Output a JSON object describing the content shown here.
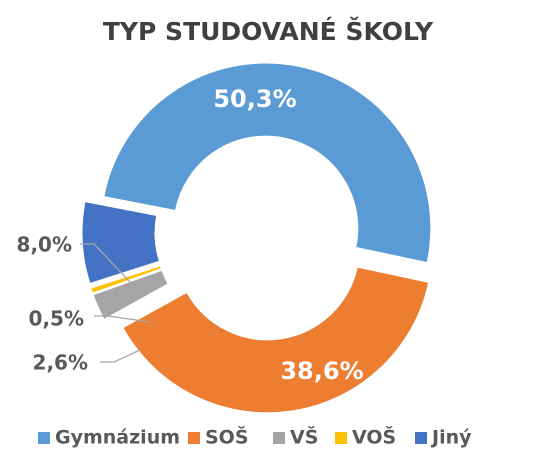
{
  "chart_data": {
    "type": "donut",
    "title": "TYP STUDOVANÉ ŠKOLY",
    "categories": [
      "Gymnázium",
      "SOŠ",
      "VŠ",
      "VOŠ",
      "Jiný"
    ],
    "values": [
      50.3,
      38.6,
      2.6,
      0.5,
      8.0
    ],
    "value_labels": [
      "50,3%",
      "38,6%",
      "2,6%",
      "0,5%",
      "8,0%"
    ],
    "colors": [
      "#5b9bd5",
      "#ed7d31",
      "#a5a5a5",
      "#ffc000",
      "#4472c4"
    ],
    "legend": "bottom"
  }
}
